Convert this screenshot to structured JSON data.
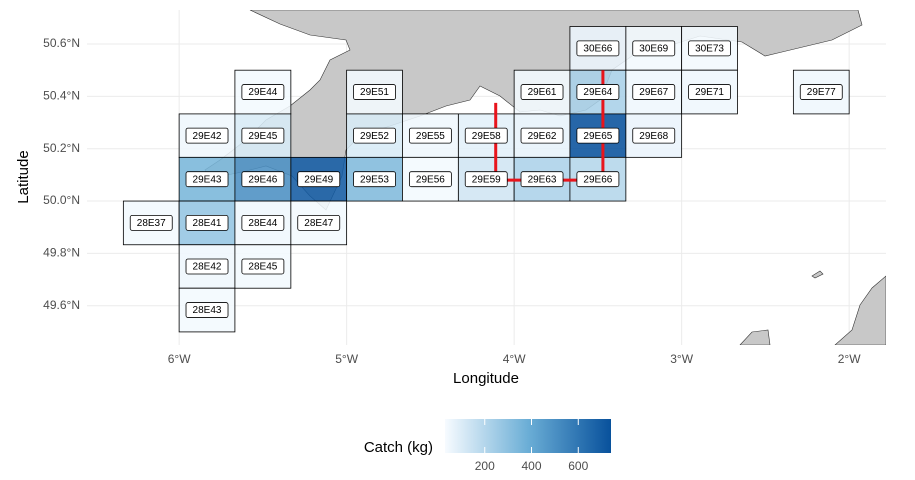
{
  "chart_data": {
    "type": "choropleth",
    "xlabel": "Longitude",
    "ylabel": "Latitude",
    "xlim": [
      -6.55,
      -1.78
    ],
    "ylim": [
      49.45,
      50.73
    ],
    "xticks": [
      {
        "value": -6,
        "label": "6°W"
      },
      {
        "value": -5,
        "label": "5°W"
      },
      {
        "value": -4,
        "label": "4°W"
      },
      {
        "value": -3,
        "label": "3°W"
      },
      {
        "value": -2,
        "label": "2°W"
      }
    ],
    "yticks": [
      {
        "value": 49.6,
        "label": "49.6°N"
      },
      {
        "value": 49.8,
        "label": "49.8°N"
      },
      {
        "value": 50.0,
        "label": "50.0°N"
      },
      {
        "value": 50.2,
        "label": "50.2°N"
      },
      {
        "value": 50.4,
        "label": "50.4°N"
      },
      {
        "value": 50.6,
        "label": "50.6°N"
      }
    ],
    "grid": true,
    "legend": {
      "title": "Catch (kg)",
      "position": "bottom",
      "lim": [
        30,
        740
      ],
      "ticks": [
        200,
        400,
        600
      ],
      "colors": [
        "#f7fbff",
        "#6baed6",
        "#08519c"
      ]
    },
    "cells": [
      {
        "label": "30E66",
        "lon": [
          -3.667,
          -3.333
        ],
        "lat": [
          50.5,
          50.667
        ],
        "value": 60
      },
      {
        "label": "30E69",
        "lon": [
          -3.333,
          -3
        ],
        "lat": [
          50.5,
          50.667
        ],
        "value": 40
      },
      {
        "label": "30E73",
        "lon": [
          -3,
          -2.667
        ],
        "lat": [
          50.5,
          50.667
        ],
        "value": 40
      },
      {
        "label": "29E44",
        "lon": [
          -5.667,
          -5.333
        ],
        "lat": [
          50.333,
          50.5
        ],
        "value": 40
      },
      {
        "label": "29E51",
        "lon": [
          -5,
          -4.667
        ],
        "lat": [
          50.333,
          50.5
        ],
        "value": 40
      },
      {
        "label": "29E61",
        "lon": [
          -4,
          -3.667
        ],
        "lat": [
          50.333,
          50.5
        ],
        "value": 40
      },
      {
        "label": "29E64",
        "lon": [
          -3.667,
          -3.333
        ],
        "lat": [
          50.333,
          50.5
        ],
        "value": 230
      },
      {
        "label": "29E67",
        "lon": [
          -3.333,
          -3
        ],
        "lat": [
          50.333,
          50.5
        ],
        "value": 50
      },
      {
        "label": "29E71",
        "lon": [
          -3,
          -2.667
        ],
        "lat": [
          50.333,
          50.5
        ],
        "value": 50
      },
      {
        "label": "29E77",
        "lon": [
          -2.333,
          -2
        ],
        "lat": [
          50.333,
          50.5
        ],
        "value": 50
      },
      {
        "label": "29E42",
        "lon": [
          -6,
          -5.667
        ],
        "lat": [
          50.167,
          50.333
        ],
        "value": 50
      },
      {
        "label": "29E45",
        "lon": [
          -5.667,
          -5.333
        ],
        "lat": [
          50.167,
          50.333
        ],
        "value": 110
      },
      {
        "label": "29E52",
        "lon": [
          -5,
          -4.667
        ],
        "lat": [
          50.167,
          50.333
        ],
        "value": 110
      },
      {
        "label": "29E55",
        "lon": [
          -4.667,
          -4.333
        ],
        "lat": [
          50.167,
          50.333
        ],
        "value": 50
      },
      {
        "label": "29E58",
        "lon": [
          -4.333,
          -4
        ],
        "lat": [
          50.167,
          50.333
        ],
        "value": 80
      },
      {
        "label": "29E62",
        "lon": [
          -4,
          -3.667
        ],
        "lat": [
          50.167,
          50.333
        ],
        "value": 70
      },
      {
        "label": "29E65",
        "lon": [
          -3.667,
          -3.333
        ],
        "lat": [
          50.167,
          50.333
        ],
        "value": 740
      },
      {
        "label": "29E68",
        "lon": [
          -3.333,
          -3
        ],
        "lat": [
          50.167,
          50.333
        ],
        "value": 60
      },
      {
        "label": "29E43",
        "lon": [
          -6,
          -5.667
        ],
        "lat": [
          50,
          50.167
        ],
        "value": 350
      },
      {
        "label": "29E46",
        "lon": [
          -5.667,
          -5.333
        ],
        "lat": [
          50,
          50.167
        ],
        "value": 500
      },
      {
        "label": "29E49",
        "lon": [
          -5.333,
          -5
        ],
        "lat": [
          50,
          50.167
        ],
        "value": 700
      },
      {
        "label": "29E53",
        "lon": [
          -5,
          -4.667
        ],
        "lat": [
          50,
          50.167
        ],
        "value": 330
      },
      {
        "label": "29E56",
        "lon": [
          -4.667,
          -4.333
        ],
        "lat": [
          50,
          50.167
        ],
        "value": 40
      },
      {
        "label": "29E59",
        "lon": [
          -4.333,
          -4
        ],
        "lat": [
          50,
          50.167
        ],
        "value": 130
      },
      {
        "label": "29E63",
        "lon": [
          -4,
          -3.667
        ],
        "lat": [
          50,
          50.167
        ],
        "value": 220
      },
      {
        "label": "29E66",
        "lon": [
          -3.667,
          -3.333
        ],
        "lat": [
          50,
          50.167
        ],
        "value": 200
      },
      {
        "label": "28E37",
        "lon": [
          -6.333,
          -6
        ],
        "lat": [
          49.833,
          50
        ],
        "value": 40
      },
      {
        "label": "28E41",
        "lon": [
          -6,
          -5.667
        ],
        "lat": [
          49.833,
          50
        ],
        "value": 280
      },
      {
        "label": "28E44",
        "lon": [
          -5.667,
          -5.333
        ],
        "lat": [
          49.833,
          50
        ],
        "value": 50
      },
      {
        "label": "28E47",
        "lon": [
          -5.333,
          -5
        ],
        "lat": [
          49.833,
          50
        ],
        "value": 40
      },
      {
        "label": "28E42",
        "lon": [
          -6,
          -5.667
        ],
        "lat": [
          49.667,
          49.833
        ],
        "value": 50
      },
      {
        "label": "28E45",
        "lon": [
          -5.667,
          -5.333
        ],
        "lat": [
          49.667,
          49.833
        ],
        "value": 40
      },
      {
        "label": "28E43",
        "lon": [
          -6,
          -5.667
        ],
        "lat": [
          49.5,
          49.667
        ],
        "value": 40
      }
    ],
    "transects": [
      {
        "color": "#e8141c",
        "lon": [
          -4.11,
          -4.11,
          -3.47,
          -3.47
        ],
        "lat": [
          50.375,
          50.08,
          50.08,
          50.5
        ]
      }
    ]
  }
}
